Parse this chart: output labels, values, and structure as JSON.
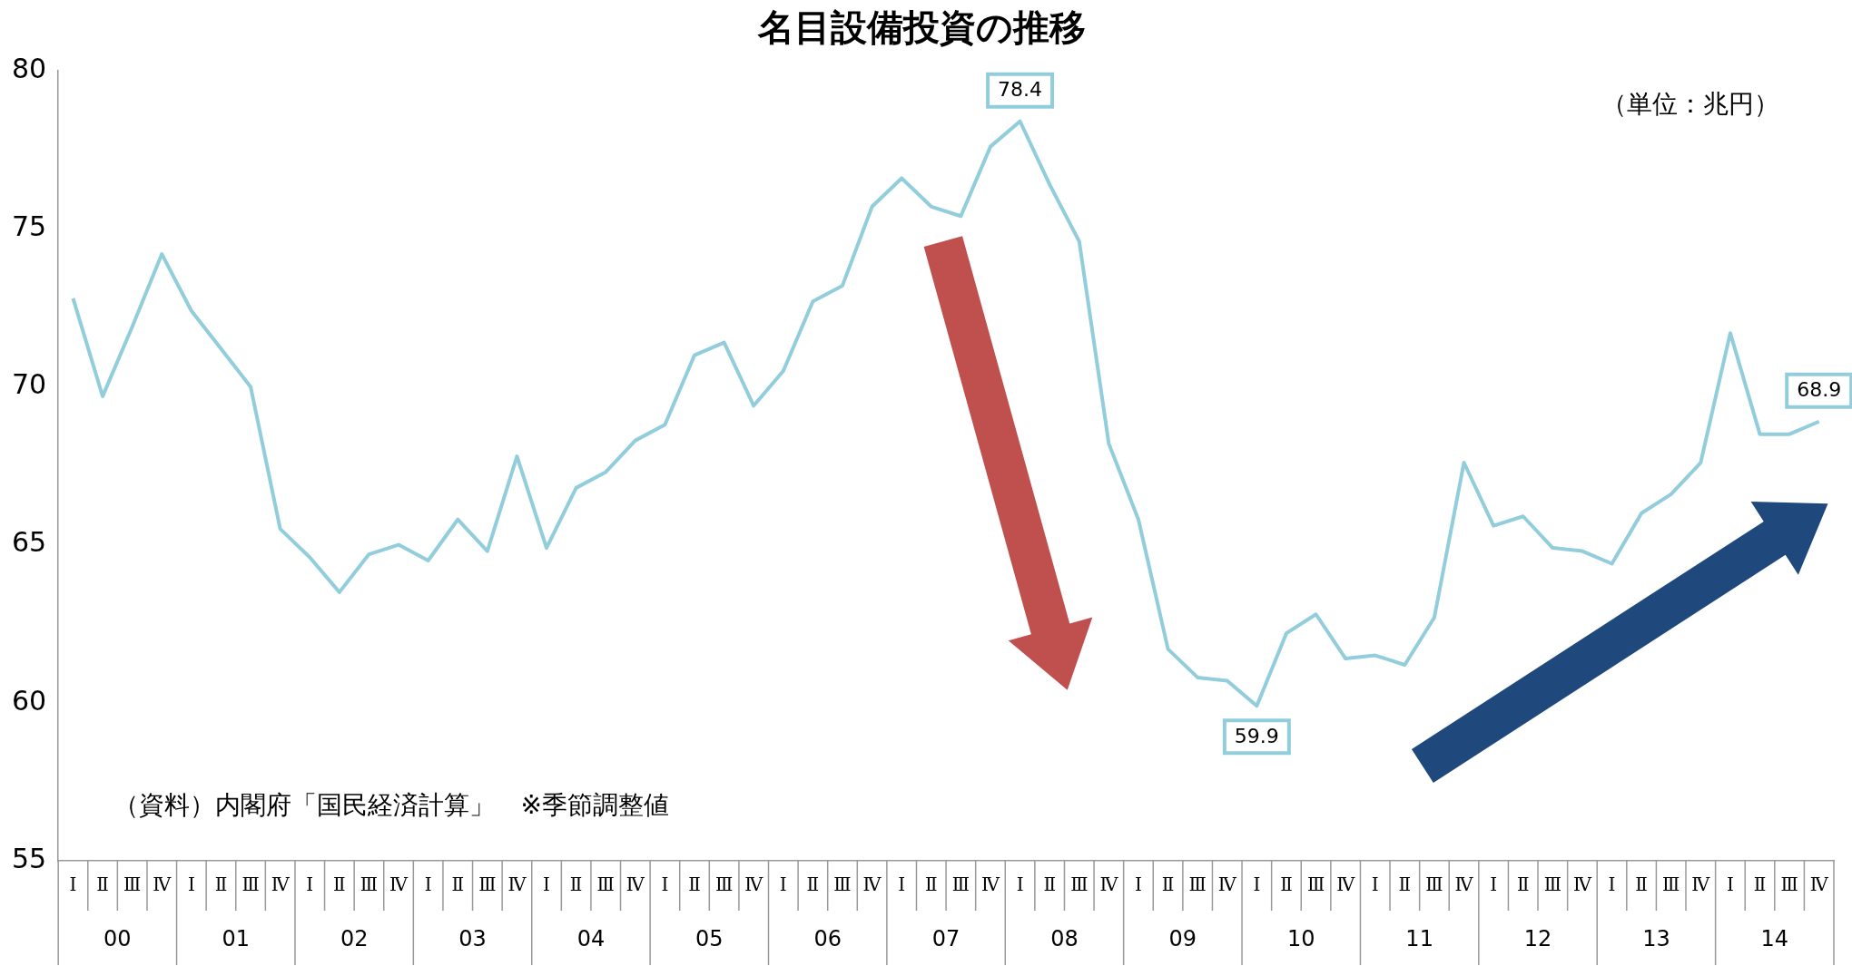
{
  "chart_data": {
    "type": "line",
    "title": "名目設備投資の推移",
    "categories": [
      "Ⅰ",
      "Ⅱ",
      "Ⅲ",
      "Ⅳ",
      "Ⅰ",
      "Ⅱ",
      "Ⅲ",
      "Ⅳ",
      "Ⅰ",
      "Ⅱ",
      "Ⅲ",
      "Ⅳ",
      "Ⅰ",
      "Ⅱ",
      "Ⅲ",
      "Ⅳ",
      "Ⅰ",
      "Ⅱ",
      "Ⅲ",
      "Ⅳ",
      "Ⅰ",
      "Ⅱ",
      "Ⅲ",
      "Ⅳ",
      "Ⅰ",
      "Ⅱ",
      "Ⅲ",
      "Ⅳ",
      "Ⅰ",
      "Ⅱ",
      "Ⅲ",
      "Ⅳ",
      "Ⅰ",
      "Ⅱ",
      "Ⅲ",
      "Ⅳ",
      "Ⅰ",
      "Ⅱ",
      "Ⅲ",
      "Ⅳ",
      "Ⅰ",
      "Ⅱ",
      "Ⅲ",
      "Ⅳ",
      "Ⅰ",
      "Ⅱ",
      "Ⅲ",
      "Ⅳ",
      "Ⅰ",
      "Ⅱ",
      "Ⅲ",
      "Ⅳ",
      "Ⅰ",
      "Ⅱ",
      "Ⅲ",
      "Ⅳ",
      "Ⅰ",
      "Ⅱ",
      "Ⅲ",
      "Ⅳ"
    ],
    "series": [
      {
        "color": "#92cddc",
        "values": [
          72.8,
          69.7,
          71.9,
          74.2,
          72.4,
          71.2,
          70.0,
          65.5,
          64.6,
          63.5,
          64.7,
          65.0,
          64.5,
          65.8,
          64.8,
          67.8,
          64.9,
          66.8,
          67.3,
          68.3,
          68.8,
          71.0,
          71.4,
          69.4,
          70.5,
          72.7,
          73.2,
          75.7,
          76.6,
          75.7,
          75.4,
          77.6,
          78.4,
          76.4,
          74.6,
          68.2,
          65.8,
          61.7,
          60.8,
          60.7,
          59.9,
          62.2,
          62.8,
          61.4,
          61.5,
          61.2,
          62.7,
          67.6,
          65.6,
          65.9,
          64.9,
          64.8,
          64.4,
          66.0,
          66.6,
          67.6,
          71.7,
          68.5,
          68.5,
          68.9
        ],
        "value_labels": [
          null,
          null,
          null,
          null,
          null,
          null,
          null,
          null,
          null,
          null,
          null,
          null,
          null,
          null,
          null,
          null,
          null,
          null,
          null,
          null,
          null,
          null,
          null,
          null,
          null,
          null,
          null,
          null,
          null,
          null,
          null,
          null,
          "78.4",
          null,
          null,
          null,
          null,
          null,
          null,
          null,
          "59.9",
          null,
          null,
          null,
          null,
          null,
          null,
          null,
          null,
          null,
          null,
          null,
          null,
          null,
          null,
          null,
          null,
          null,
          null,
          "68.9"
        ]
      }
    ],
    "ylim": [
      55,
      80
    ],
    "yticks": [
      55,
      60,
      65,
      70,
      75,
      80
    ],
    "grid": false,
    "legend": false,
    "marker": "none",
    "line_style": "solid",
    "annotations": [
      "（資料）内閣府「国民経済計算」　※季節調整値",
      "（単位：兆円）",
      "00",
      "01",
      "02",
      "03",
      "04",
      "05",
      "06",
      "07",
      "08",
      "09",
      "10",
      "11",
      "12",
      "13",
      "14"
    ]
  }
}
